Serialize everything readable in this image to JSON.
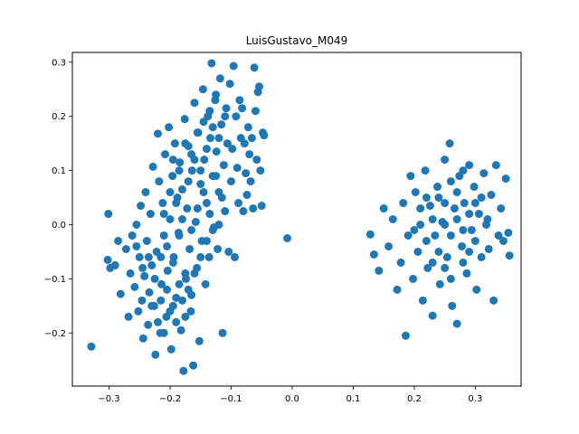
{
  "chart_data": {
    "type": "scatter",
    "title": "LuisGustavo_M049",
    "xlabel": "",
    "ylabel": "",
    "xlim": [
      -0.36,
      0.375
    ],
    "ylim": [
      -0.298,
      0.318
    ],
    "xticks": [
      -0.3,
      -0.2,
      -0.1,
      0.0,
      0.1,
      0.2,
      0.3
    ],
    "yticks": [
      -0.2,
      -0.1,
      0.0,
      0.1,
      0.2,
      0.3
    ],
    "xtick_labels": [
      "−0.3",
      "−0.2",
      "−0.1",
      "0.0",
      "0.1",
      "0.2",
      "0.3"
    ],
    "ytick_labels": [
      "−0.2",
      "−0.1",
      "0.0",
      "0.1",
      "0.2",
      "0.3"
    ],
    "grid": false,
    "marker_color": "#1f77b4",
    "series": [
      {
        "points": [
          [
            -0.329,
            -0.225
          ],
          [
            -0.301,
            0.02
          ],
          [
            -0.298,
            -0.08
          ],
          [
            -0.302,
            -0.065
          ],
          [
            -0.29,
            -0.075
          ],
          [
            -0.285,
            -0.03
          ],
          [
            -0.281,
            -0.128
          ],
          [
            -0.272,
            -0.045
          ],
          [
            -0.268,
            -0.17
          ],
          [
            -0.265,
            -0.09
          ],
          [
            -0.262,
            -0.02
          ],
          [
            -0.258,
            -0.115
          ],
          [
            -0.255,
            0.0
          ],
          [
            -0.252,
            -0.16
          ],
          [
            -0.25,
            -0.06
          ],
          [
            -0.248,
            0.035
          ],
          [
            -0.246,
            -0.14
          ],
          [
            -0.244,
            -0.21
          ],
          [
            -0.242,
            -0.095
          ],
          [
            -0.24,
            0.06
          ],
          [
            -0.238,
            -0.03
          ],
          [
            -0.236,
            -0.185
          ],
          [
            -0.234,
            -0.125
          ],
          [
            -0.232,
            0.02
          ],
          [
            -0.23,
            -0.075
          ],
          [
            -0.228,
            0.107
          ],
          [
            -0.226,
            -0.15
          ],
          [
            -0.224,
            -0.24
          ],
          [
            -0.222,
            -0.05
          ],
          [
            -0.22,
            0.168
          ],
          [
            -0.218,
            0.08
          ],
          [
            -0.216,
            -0.2
          ],
          [
            -0.214,
            -0.11
          ],
          [
            -0.212,
            0.04
          ],
          [
            -0.21,
            -0.02
          ],
          [
            -0.208,
            0.13
          ],
          [
            -0.206,
            -0.17
          ],
          [
            -0.204,
            -0.085
          ],
          [
            -0.202,
            0.18
          ],
          [
            -0.2,
            0.01
          ],
          [
            -0.198,
            -0.23
          ],
          [
            -0.196,
            0.09
          ],
          [
            -0.194,
            -0.06
          ],
          [
            -0.192,
            0.15
          ],
          [
            -0.19,
            -0.135
          ],
          [
            -0.188,
            0.05
          ],
          [
            -0.186,
            -0.015
          ],
          [
            -0.184,
            0.115
          ],
          [
            -0.182,
            -0.195
          ],
          [
            -0.18,
            0.065
          ],
          [
            -0.178,
            -0.27
          ],
          [
            -0.176,
            0.195
          ],
          [
            -0.174,
            -0.1
          ],
          [
            -0.172,
            0.03
          ],
          [
            -0.17,
            0.145
          ],
          [
            -0.168,
            -0.045
          ],
          [
            -0.166,
            -0.16
          ],
          [
            -0.164,
            0.1
          ],
          [
            -0.162,
            -0.26
          ],
          [
            -0.16,
            0.225
          ],
          [
            -0.158,
            0.005
          ],
          [
            -0.156,
            -0.08
          ],
          [
            -0.154,
            0.17
          ],
          [
            -0.152,
            -0.215
          ],
          [
            -0.15,
            0.075
          ],
          [
            -0.148,
            -0.03
          ],
          [
            -0.146,
            0.25
          ],
          [
            -0.144,
            0.12
          ],
          [
            -0.142,
            -0.11
          ],
          [
            -0.14,
            0.04
          ],
          [
            -0.138,
            0.2
          ],
          [
            -0.136,
            -0.06
          ],
          [
            -0.134,
            0.16
          ],
          [
            -0.132,
            0.298
          ],
          [
            -0.13,
            0.09
          ],
          [
            -0.128,
            -0.005
          ],
          [
            -0.126,
            0.23
          ],
          [
            -0.124,
            0.135
          ],
          [
            -0.122,
            -0.045
          ],
          [
            -0.12,
            0.06
          ],
          [
            -0.118,
            0.27
          ],
          [
            -0.116,
            0.185
          ],
          [
            -0.114,
            -0.2
          ],
          [
            -0.112,
            0.11
          ],
          [
            -0.11,
            0.025
          ],
          [
            -0.108,
            0.215
          ],
          [
            -0.106,
            0.15
          ],
          [
            -0.104,
            -0.05
          ],
          [
            -0.102,
            0.26
          ],
          [
            -0.1,
            0.08
          ],
          [
            -0.098,
            0.14
          ],
          [
            -0.096,
            0.293
          ],
          [
            -0.094,
            -0.06
          ],
          [
            -0.092,
            0.2
          ],
          [
            -0.09,
            0.105
          ],
          [
            -0.088,
            0.04
          ],
          [
            -0.086,
            0.23
          ],
          [
            -0.084,
            0.16
          ],
          [
            -0.082,
            0.215
          ],
          [
            -0.08,
            0.025
          ],
          [
            -0.078,
            0.15
          ],
          [
            -0.076,
            0.095
          ],
          [
            -0.074,
            0.055
          ],
          [
            -0.072,
            0.18
          ],
          [
            -0.07,
            0.13
          ],
          [
            -0.068,
            0.08
          ],
          [
            -0.066,
            0.16
          ],
          [
            -0.064,
            0.03
          ],
          [
            -0.062,
            0.29
          ],
          [
            -0.06,
            0.21
          ],
          [
            -0.058,
            0.12
          ],
          [
            -0.056,
            0.245
          ],
          [
            -0.054,
            0.255
          ],
          [
            -0.052,
            0.1
          ],
          [
            -0.05,
            0.035
          ],
          [
            -0.048,
            0.17
          ],
          [
            -0.046,
            0.165
          ],
          [
            -0.008,
            -0.025
          ],
          [
            -0.215,
            -0.14
          ],
          [
            -0.205,
            -0.12
          ],
          [
            -0.195,
            -0.15
          ],
          [
            -0.185,
            -0.11
          ],
          [
            -0.175,
            -0.17
          ],
          [
            -0.165,
            -0.13
          ],
          [
            -0.215,
            -0.06
          ],
          [
            -0.205,
            -0.04
          ],
          [
            -0.195,
            -0.07
          ],
          [
            -0.185,
            -0.02
          ],
          [
            -0.175,
            -0.09
          ],
          [
            -0.165,
            -0.01
          ],
          [
            -0.155,
            0.03
          ],
          [
            -0.145,
            0.06
          ],
          [
            -0.135,
            0.02
          ],
          [
            -0.125,
            0.09
          ],
          [
            -0.115,
            0.05
          ],
          [
            -0.21,
            0.02
          ],
          [
            -0.2,
            0.06
          ],
          [
            -0.19,
            0.04
          ],
          [
            -0.18,
            0.01
          ],
          [
            -0.17,
            0.08
          ],
          [
            -0.16,
            0.12
          ],
          [
            -0.15,
            0.1
          ],
          [
            -0.14,
            0.14
          ],
          [
            -0.13,
            0.18
          ],
          [
            -0.12,
            0.16
          ],
          [
            -0.11,
            0.2
          ],
          [
            -0.225,
            -0.1
          ],
          [
            -0.235,
            -0.06
          ],
          [
            -0.245,
            -0.08
          ],
          [
            -0.255,
            -0.04
          ],
          [
            -0.23,
            -0.15
          ],
          [
            -0.22,
            -0.18
          ],
          [
            -0.21,
            -0.2
          ],
          [
            -0.2,
            -0.16
          ],
          [
            -0.19,
            -0.18
          ],
          [
            -0.18,
            -0.14
          ],
          [
            -0.17,
            -0.12
          ],
          [
            -0.16,
            -0.09
          ],
          [
            -0.15,
            -0.06
          ],
          [
            -0.14,
            -0.03
          ],
          [
            -0.13,
            -0.01
          ],
          [
            -0.12,
            0.0
          ],
          [
            -0.195,
            0.12
          ],
          [
            -0.185,
            0.1
          ],
          [
            -0.175,
            0.15
          ],
          [
            -0.165,
            0.13
          ],
          [
            -0.155,
            0.17
          ],
          [
            -0.145,
            0.19
          ],
          [
            -0.135,
            0.21
          ],
          [
            -0.125,
            0.24
          ],
          [
            0.128,
            -0.018
          ],
          [
            0.134,
            -0.055
          ],
          [
            0.142,
            -0.085
          ],
          [
            0.15,
            0.03
          ],
          [
            0.158,
            -0.04
          ],
          [
            0.165,
            0.01
          ],
          [
            0.172,
            -0.12
          ],
          [
            0.178,
            -0.07
          ],
          [
            0.182,
            0.04
          ],
          [
            0.186,
            -0.205
          ],
          [
            0.19,
            -0.02
          ],
          [
            0.194,
            0.09
          ],
          [
            0.198,
            -0.1
          ],
          [
            0.202,
            0.06
          ],
          [
            0.206,
            -0.05
          ],
          [
            0.21,
            0.0
          ],
          [
            0.214,
            -0.14
          ],
          [
            0.218,
            0.1
          ],
          [
            0.222,
            -0.08
          ],
          [
            0.226,
            0.035
          ],
          [
            0.23,
            -0.168
          ],
          [
            0.234,
            -0.02
          ],
          [
            0.238,
            0.07
          ],
          [
            0.242,
            -0.11
          ],
          [
            0.246,
            0.005
          ],
          [
            0.25,
            0.12
          ],
          [
            0.254,
            -0.06
          ],
          [
            0.258,
            0.15
          ],
          [
            0.262,
            -0.15
          ],
          [
            0.266,
            0.03
          ],
          [
            0.27,
            -0.183
          ],
          [
            0.274,
            0.09
          ],
          [
            0.278,
            -0.04
          ],
          [
            0.282,
            0.04
          ],
          [
            0.286,
            -0.09
          ],
          [
            0.29,
            0.11
          ],
          [
            0.294,
            -0.01
          ],
          [
            0.298,
            0.07
          ],
          [
            0.302,
            -0.12
          ],
          [
            0.306,
            0.02
          ],
          [
            0.31,
            -0.06
          ],
          [
            0.314,
            0.095
          ],
          [
            0.318,
            0.0
          ],
          [
            0.322,
            -0.045
          ],
          [
            0.326,
            0.055
          ],
          [
            0.33,
            -0.14
          ],
          [
            0.334,
            0.11
          ],
          [
            0.338,
            -0.02
          ],
          [
            0.342,
            0.03
          ],
          [
            0.346,
            -0.03
          ],
          [
            0.35,
            0.085
          ],
          [
            0.354,
            -0.015
          ],
          [
            0.356,
            -0.057
          ],
          [
            0.2,
            -0.01
          ],
          [
            0.21,
            0.03
          ],
          [
            0.22,
            -0.03
          ],
          [
            0.23,
            0.01
          ],
          [
            0.24,
            -0.05
          ],
          [
            0.25,
            0.04
          ],
          [
            0.26,
            -0.02
          ],
          [
            0.27,
            0.06
          ],
          [
            0.28,
            -0.07
          ],
          [
            0.29,
            0.02
          ],
          [
            0.3,
            -0.03
          ],
          [
            0.31,
            0.05
          ],
          [
            0.24,
            0.05
          ],
          [
            0.25,
            -0.08
          ],
          [
            0.26,
            0.08
          ],
          [
            0.27,
            0.01
          ],
          [
            0.28,
            0.1
          ],
          [
            0.29,
            -0.05
          ],
          [
            0.26,
            -0.1
          ],
          [
            0.25,
            0.0
          ],
          [
            0.23,
            -0.07
          ],
          [
            0.22,
            0.05
          ],
          [
            0.28,
            -0.01
          ],
          [
            0.3,
            0.04
          ],
          [
            0.32,
            0.01
          ]
        ]
      }
    ]
  }
}
